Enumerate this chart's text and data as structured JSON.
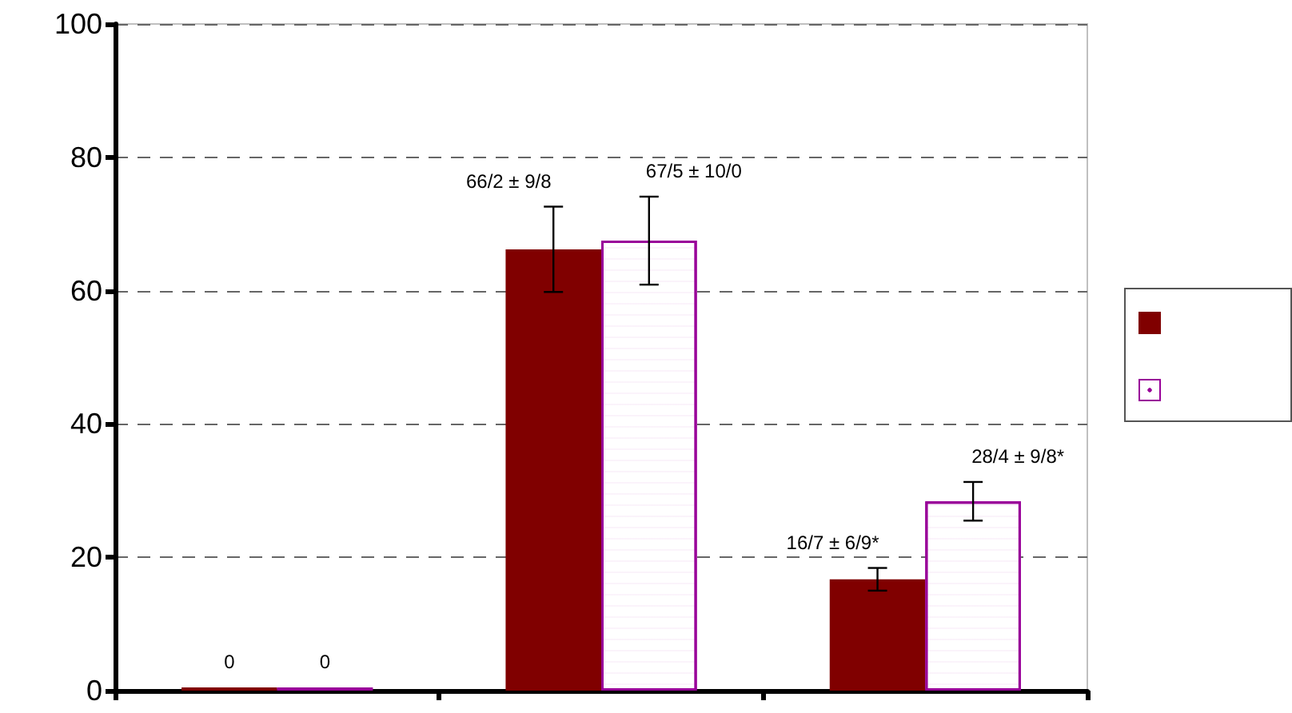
{
  "chart_data": {
    "type": "bar",
    "categories": [
      null,
      null,
      null
    ],
    "series": [
      {
        "color": "#800000",
        "values": [
          0,
          66.2,
          16.7
        ],
        "errors": [
          null,
          6.4,
          1.7
        ],
        "value_labels": [
          "0",
          "66/2 ± 9/8",
          "16/7 ± 6/9*"
        ]
      },
      {
        "color": "#990099",
        "values": [
          0,
          67.5,
          28.4
        ],
        "errors": [
          null,
          6.6,
          2.9
        ],
        "value_labels": [
          "0",
          "67/5 ± 10/0",
          "28/4 ± 9/8*"
        ]
      }
    ],
    "ylim": [
      0,
      100
    ],
    "yticks": [
      0,
      20,
      40,
      60,
      80,
      100
    ],
    "grid": "y",
    "tick_labels": "y"
  }
}
